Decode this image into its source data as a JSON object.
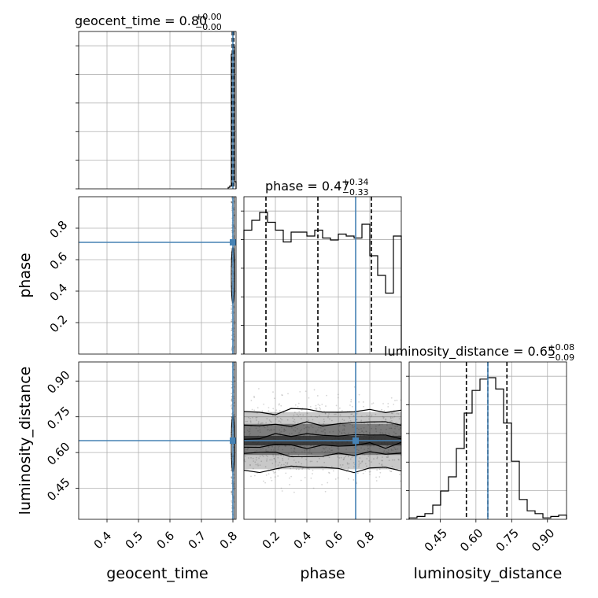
{
  "chart_data": {
    "type": "corner",
    "parameters": [
      "geocent_time",
      "phase",
      "luminosity_distance"
    ],
    "truths": {
      "geocent_time": 0.8,
      "phase": 0.71,
      "luminosity_distance": 0.65
    },
    "titles": [
      {
        "text": "geocent_time = 0.80",
        "sup": "+0.00",
        "sub": "−0.00"
      },
      {
        "text": "phase = 0.47",
        "sup": "+0.34",
        "sub": "−0.33"
      },
      {
        "text": "luminosity_distance = 0.65",
        "sup": "+0.08",
        "sub": "−0.09"
      }
    ],
    "axes": {
      "geocent_time": {
        "range": [
          0.31,
          0.81
        ],
        "ticks": [
          0.4,
          0.5,
          0.6,
          0.7,
          0.8
        ],
        "tick_labels": [
          "0.4",
          "0.5",
          "0.6",
          "0.7",
          "0.8"
        ]
      },
      "phase": {
        "range": [
          0.0,
          1.0
        ],
        "ticks": [
          0.2,
          0.4,
          0.6,
          0.8
        ],
        "tick_labels": [
          "0.2",
          "0.4",
          "0.6",
          "0.8"
        ]
      },
      "luminosity_distance": {
        "range": [
          0.32,
          0.98
        ],
        "ticks": [
          0.45,
          0.6,
          0.75,
          0.9
        ],
        "tick_labels": [
          "0.45",
          "0.60",
          "0.75",
          "0.90"
        ]
      }
    },
    "histograms": {
      "geocent_time": {
        "edges": [
          0.785,
          0.79,
          0.795,
          0.8,
          0.805,
          0.81
        ],
        "counts": [
          0.01,
          0.02,
          0.95,
          1.0,
          0.05
        ],
        "quantiles": [
          0.798,
          0.8,
          0.803
        ]
      },
      "phase": {
        "edges": [
          0.0,
          0.05,
          0.1,
          0.15,
          0.2,
          0.25,
          0.3,
          0.35,
          0.4,
          0.45,
          0.5,
          0.55,
          0.6,
          0.65,
          0.7,
          0.75,
          0.8,
          0.85,
          0.9,
          0.95,
          1.0
        ],
        "counts": [
          0.63,
          0.68,
          0.72,
          0.67,
          0.63,
          0.57,
          0.62,
          0.62,
          0.6,
          0.63,
          0.59,
          0.58,
          0.61,
          0.6,
          0.59,
          0.66,
          0.5,
          0.4,
          0.31,
          0.6
        ],
        "quantiles": [
          0.14,
          0.47,
          0.81
        ]
      },
      "luminosity_distance": {
        "edges": [
          0.32,
          0.353,
          0.386,
          0.419,
          0.452,
          0.485,
          0.518,
          0.551,
          0.584,
          0.617,
          0.65,
          0.683,
          0.716,
          0.749,
          0.782,
          0.815,
          0.848,
          0.881,
          0.914,
          0.947,
          0.98
        ],
        "counts": [
          0.01,
          0.02,
          0.04,
          0.1,
          0.2,
          0.3,
          0.5,
          0.75,
          0.91,
          0.99,
          1.0,
          0.92,
          0.68,
          0.41,
          0.14,
          0.06,
          0.04,
          0.01,
          0.02,
          0.03
        ],
        "quantiles": [
          0.56,
          0.65,
          0.73
        ]
      }
    },
    "two_d": [
      {
        "x": "geocent_time",
        "y": "phase",
        "density_x_range": [
          0.795,
          0.805
        ]
      },
      {
        "x": "geocent_time",
        "y": "luminosity_distance",
        "density_x_range": [
          0.795,
          0.805
        ]
      },
      {
        "x": "phase",
        "y": "luminosity_distance",
        "density_x_range": [
          0.0,
          1.0
        ],
        "contour_y_levels": [
          0.53,
          0.59,
          0.63,
          0.67,
          0.72,
          0.77
        ]
      }
    ],
    "grid": true,
    "truth_color": "#4682b4"
  }
}
